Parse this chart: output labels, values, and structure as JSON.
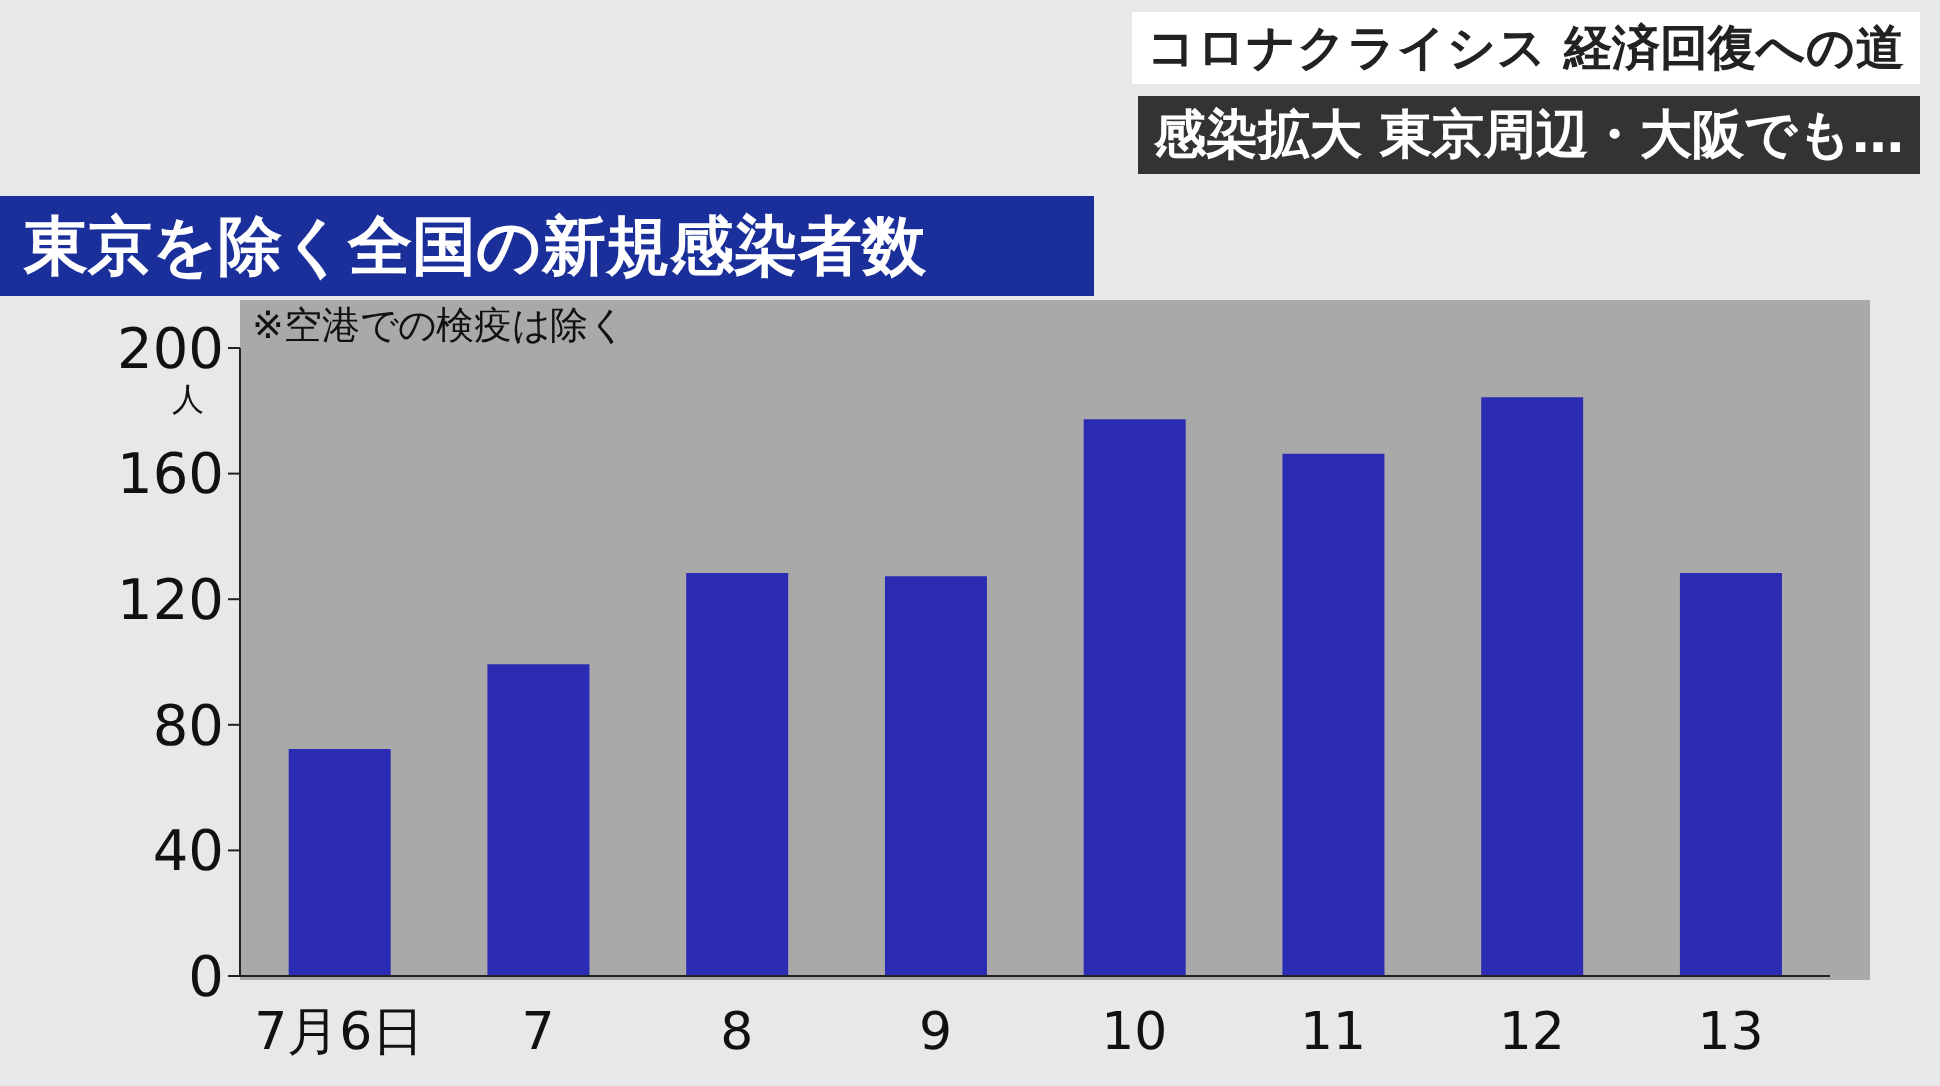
{
  "chart_data": {
    "type": "bar",
    "title": "東京を除く全国の新規感染者数",
    "ylabel": "人",
    "annotations": [
      "※空港での検疫は除く",
      "コロナクライシス 経済回復への道",
      "感染拡大 東京周辺・大阪でも…"
    ],
    "categories": [
      "7月6日",
      "7",
      "8",
      "9",
      "10",
      "11",
      "12",
      "13"
    ],
    "values": [
      72,
      99,
      128,
      127,
      177,
      166,
      184,
      128
    ],
    "color": "#2b2bb3",
    "ylim": [
      0,
      200
    ],
    "yticks": [
      0,
      40,
      80,
      120,
      160,
      200
    ],
    "grid": false,
    "legend": false
  }
}
